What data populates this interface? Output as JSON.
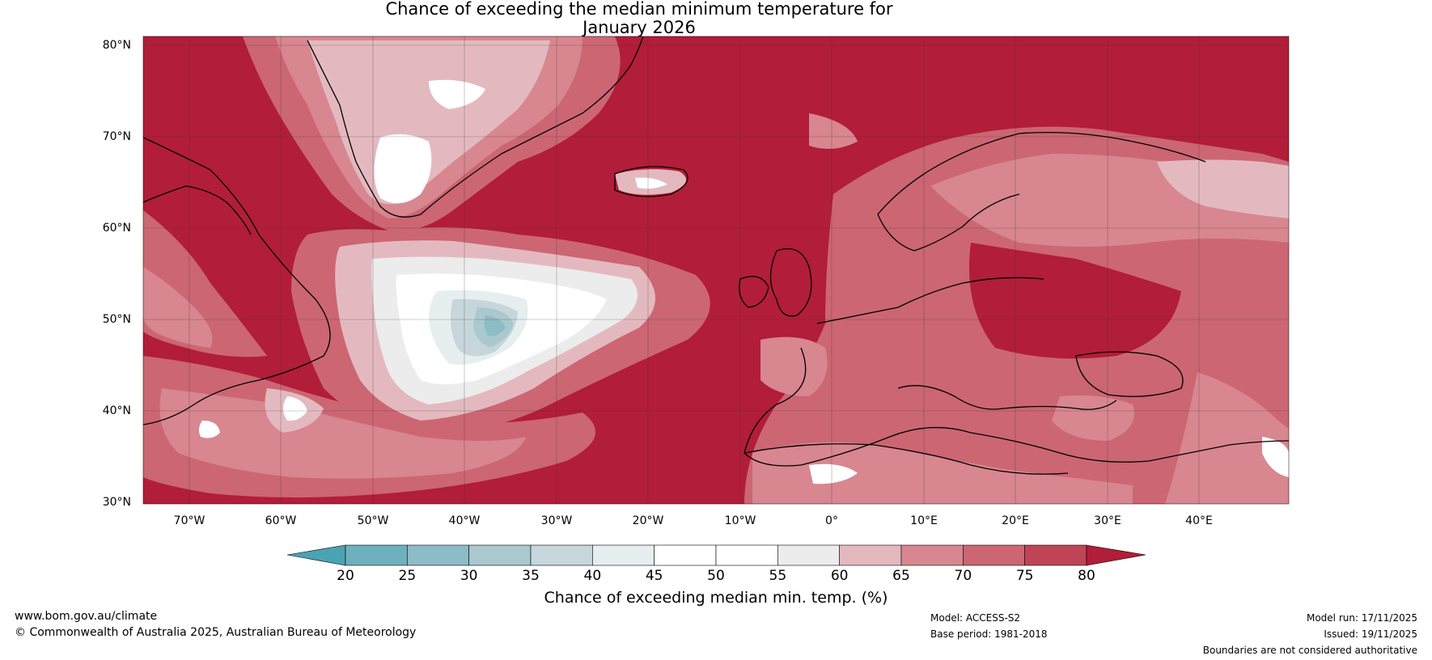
{
  "map": {
    "title_line1": "Chance of exceeding the median minimum temperature for",
    "title_line2": "January 2026",
    "lat_labels": [
      "80°N",
      "70°N",
      "60°N",
      "50°N",
      "40°N",
      "30°N"
    ],
    "lon_labels": [
      "70°W",
      "60°W",
      "50°W",
      "40°W",
      "30°W",
      "20°W",
      "10°W",
      "0°",
      "10°E",
      "20°E",
      "30°E",
      "40°E"
    ],
    "colorbar": {
      "label": "Chance of exceeding median min. temp. (%)",
      "ticks": [
        "20",
        "25",
        "30",
        "35",
        "40",
        "45",
        "50",
        "55",
        "60",
        "65",
        "70",
        "75",
        "80"
      ],
      "colors": [
        "#4aa3b3",
        "#6eb0bd",
        "#8cbcc5",
        "#a9c9cf",
        "#c6d6da",
        "#e6eeef",
        "#ffffff",
        "#ffffff",
        "#ececec",
        "#e3b9bf",
        "#d88690",
        "#cc6673",
        "#bf4456",
        "#b21d39"
      ]
    },
    "colors": {
      "hot": "#b21d39",
      "warm": "#cc6673",
      "mild": "#d88690",
      "pale": "#e3b9bf",
      "neutral": "#ececec",
      "cool": "#a9c9cf",
      "cold": "#6eb0bd"
    }
  },
  "footer": {
    "website": "www.bom.gov.au/climate",
    "copyright": "© Commonwealth of Australia 2025, Australian Bureau of Meteorology",
    "model": "Model: ACCESS-S2",
    "base_period": "Base period: 1981-2018",
    "model_run": "Model run: 17/11/2025",
    "issued": "Issued: 19/11/2025",
    "disclaimer": "Boundaries are not considered authoritative"
  }
}
